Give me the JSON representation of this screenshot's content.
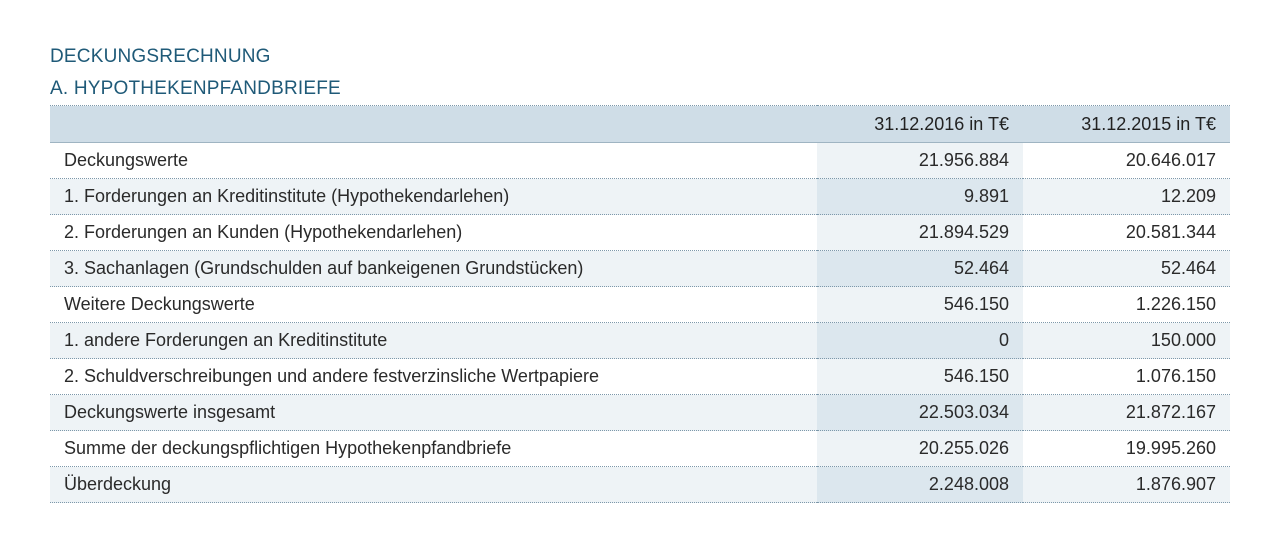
{
  "title": "DECKUNGSRECHNUNG",
  "subtitle": "A. HYPOTHEKENPFANDBRIEFE",
  "table": {
    "headers": [
      "",
      "31.12.2016 in T€",
      "31.12.2015 in T€"
    ],
    "rows": [
      {
        "label": "Deckungswerte",
        "v2016": "21.956.884",
        "v2015": "20.646.017"
      },
      {
        "label": "1. Forderungen an Kreditinstitute (Hypothekendarlehen)",
        "v2016": "9.891",
        "v2015": "12.209"
      },
      {
        "label": "2. Forderungen an Kunden (Hypothekendarlehen)",
        "v2016": "21.894.529",
        "v2015": "20.581.344"
      },
      {
        "label": "3. Sachanlagen (Grundschulden auf bankeigenen Grundstücken)",
        "v2016": "52.464",
        "v2015": "52.464"
      },
      {
        "label": "Weitere Deckungswerte",
        "v2016": "546.150",
        "v2015": "1.226.150"
      },
      {
        "label": "1. andere Forderungen an Kreditinstitute",
        "v2016": "0",
        "v2015": "150.000"
      },
      {
        "label": "2. Schuldverschreibungen und andere festverzinsliche Wertpapiere",
        "v2016": "546.150",
        "v2015": "1.076.150"
      },
      {
        "label": "Deckungswerte insgesamt",
        "v2016": "22.503.034",
        "v2015": "21.872.167"
      },
      {
        "label": "Summe der deckungspflichtigen Hypothekenpfandbriefe",
        "v2016": "20.255.026",
        "v2015": "19.995.260"
      },
      {
        "label": "Überdeckung",
        "v2016": "2.248.008",
        "v2015": "1.876.907"
      }
    ]
  },
  "colors": {
    "heading": "#1f5a78",
    "header_bg": "#cfdde7",
    "row_tint": "#eef3f6",
    "col_tint": "#dce7ee"
  }
}
